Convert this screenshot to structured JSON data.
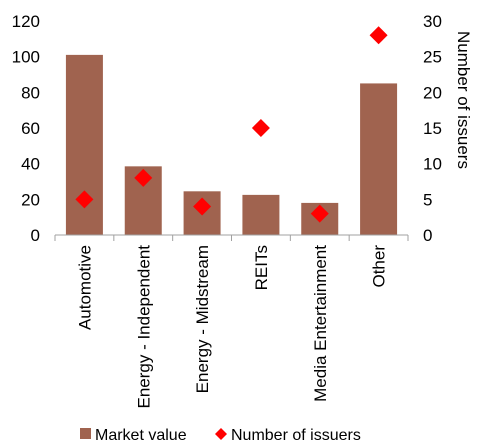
{
  "chart_data": {
    "type": "bar",
    "categories": [
      "Automotive",
      "Energy - Independent",
      "Energy - Midstream",
      "REITs",
      "Media Entertainment",
      "Other"
    ],
    "series": [
      {
        "name": "Market value",
        "kind": "bar",
        "axis": "left",
        "values": [
          101,
          38.5,
          24.5,
          22.5,
          18,
          85
        ]
      },
      {
        "name": "Number of issuers",
        "kind": "marker",
        "marker": "diamond",
        "axis": "right",
        "values": [
          5,
          8,
          4,
          15,
          3,
          28
        ]
      }
    ],
    "y_left": {
      "ylim": [
        0,
        120
      ],
      "ticks": [
        0,
        20,
        40,
        60,
        80,
        100,
        120
      ],
      "label": ""
    },
    "y_right": {
      "ylim": [
        0,
        30
      ],
      "ticks": [
        0,
        5,
        10,
        15,
        20,
        25,
        30
      ],
      "label": "Number of issuers"
    },
    "legend": {
      "placement": "bottom"
    },
    "grid": false,
    "colors": {
      "bar": "#a0634f",
      "marker": "#ff0000",
      "axis": "#a0a0a0"
    }
  }
}
